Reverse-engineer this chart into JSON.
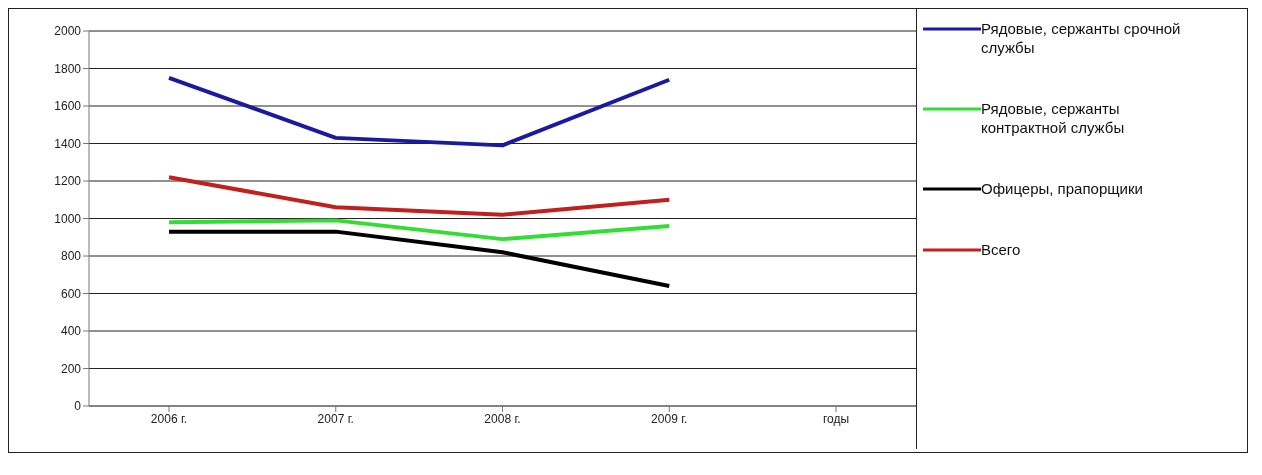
{
  "chart_data": {
    "type": "line",
    "categories": [
      "2006 г.",
      "2007 г.",
      "2008 г.",
      "2009 г.",
      "годы"
    ],
    "series": [
      {
        "name": "Рядовые, сержанты срочной службы",
        "color": "#1a1aa0",
        "values": [
          1750,
          1430,
          1390,
          1740,
          null
        ]
      },
      {
        "name": "Рядовые, сержанты контрактной службы",
        "color": "#33dd33",
        "values": [
          980,
          990,
          890,
          960,
          null
        ]
      },
      {
        "name": "Офицеры, прапорщики",
        "color": "#000000",
        "values": [
          930,
          930,
          820,
          640,
          null
        ]
      },
      {
        "name": "Всего",
        "color": "#c0201e",
        "values": [
          1220,
          1060,
          1020,
          1100,
          null
        ]
      }
    ],
    "ylim": [
      0,
      2000
    ],
    "yticks": [
      0,
      200,
      400,
      600,
      800,
      1000,
      1200,
      1400,
      1600,
      1800,
      2000
    ],
    "grid": "y",
    "legend": "right",
    "marker": "none",
    "line_style": "solid"
  }
}
